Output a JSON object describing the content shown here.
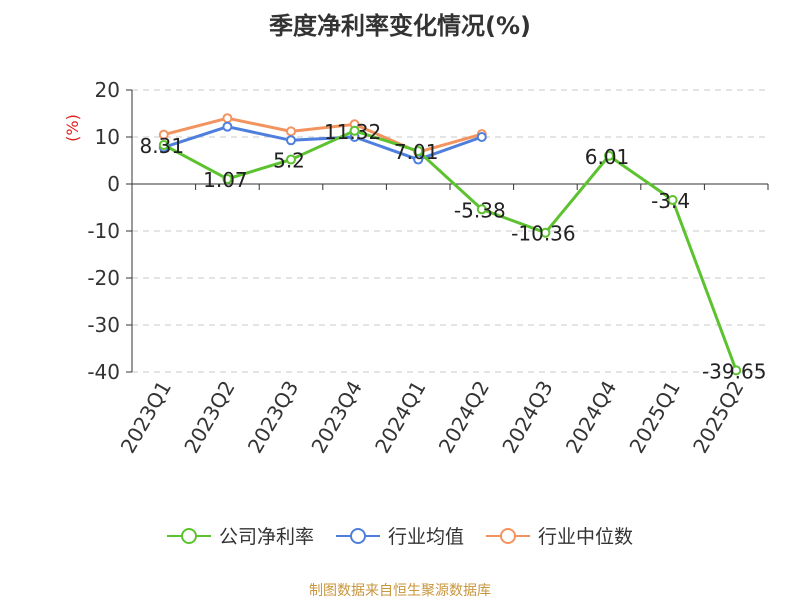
{
  "chart_data": {
    "type": "line",
    "title": "季度净利率变化情况(%)",
    "ylabel": "(%)",
    "categories": [
      "2023Q1",
      "2023Q2",
      "2023Q3",
      "2023Q4",
      "2024Q1",
      "2024Q2",
      "2024Q3",
      "2024Q4",
      "2025Q1",
      "2025Q2"
    ],
    "ylim": [
      -40,
      20
    ],
    "yticks": [
      20,
      10,
      0,
      -10,
      -20,
      -30,
      -40
    ],
    "grid": true,
    "legend_position": "bottom",
    "series": [
      {
        "name": "公司净利率",
        "color": "#5cc22f",
        "values": [
          8.31,
          1.07,
          5.2,
          11.32,
          7.01,
          -5.38,
          -10.36,
          6.01,
          -3.4,
          -39.65
        ],
        "labels": [
          "8.31",
          "1.07",
          "5.2",
          "11.32",
          "7.01",
          "-5.38",
          "-10.36",
          "6.01",
          "-3.4",
          "-39.65"
        ]
      },
      {
        "name": "行业均值",
        "color": "#4f7fdd",
        "values": [
          7.8,
          12.2,
          9.3,
          10.0,
          5.2,
          10.0,
          null,
          null,
          null,
          null
        ]
      },
      {
        "name": "行业中位数",
        "color": "#f3935f",
        "values": [
          10.5,
          14.0,
          11.2,
          12.7,
          6.8,
          10.6,
          null,
          null,
          null,
          null
        ]
      }
    ]
  },
  "source_text": "制图数据来自恒生聚源数据库"
}
